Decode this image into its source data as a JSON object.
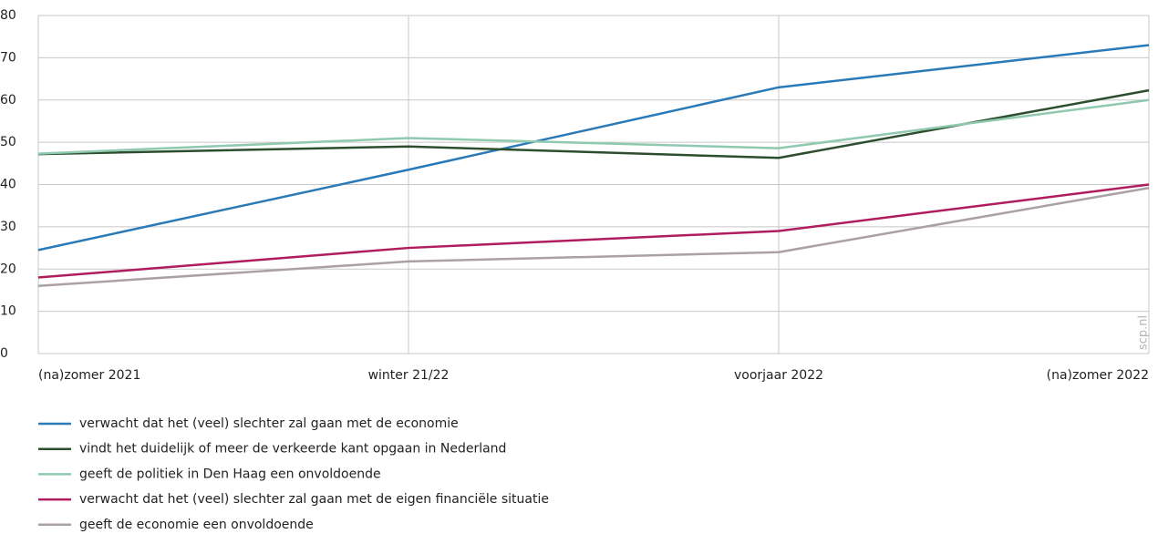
{
  "chart_data": {
    "type": "line",
    "categories": [
      "(na)zomer 2021",
      "winter 21/22",
      "voorjaar 2022",
      "(na)zomer 2022"
    ],
    "series": [
      {
        "name": "verwacht dat het (veel) slechter zal gaan met de economie",
        "color": "#2a7ab8",
        "values": [
          24.5,
          43.5,
          63,
          73
        ]
      },
      {
        "name": "vindt het duidelijk of meer de verkeerde kant opgaan in Nederland",
        "color": "#2d4e2e",
        "values": [
          47.2,
          49,
          46.3,
          62.3
        ]
      },
      {
        "name": "geeft de politiek in Den Haag een onvoldoende",
        "color": "#8fc9b0",
        "values": [
          47.3,
          51,
          48.6,
          60
        ]
      },
      {
        "name": "verwacht dat het (veel) slechter zal gaan met de eigen financiële situatie",
        "color": "#b01c5e",
        "values": [
          18,
          25,
          29,
          40
        ]
      },
      {
        "name": "geeft de economie een onvoldoende",
        "color": "#aaa0a6",
        "values": [
          16,
          21.8,
          24,
          39.2
        ]
      }
    ],
    "ylim": [
      0,
      80
    ],
    "yticks": [
      0,
      10,
      20,
      30,
      40,
      50,
      60,
      70,
      80
    ],
    "grid": true,
    "watermark": "scp.nl"
  }
}
